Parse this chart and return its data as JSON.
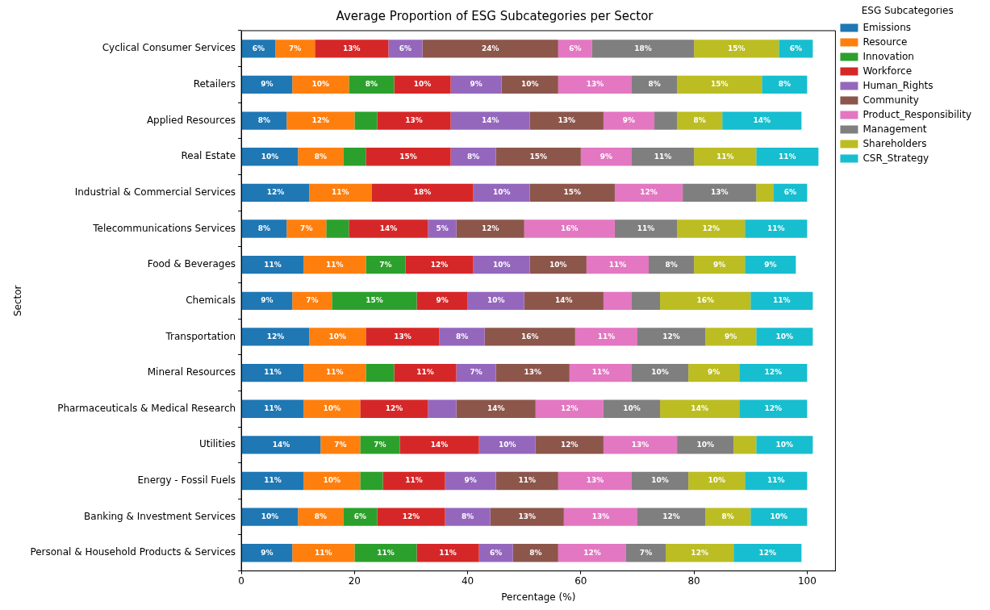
{
  "chart_data": {
    "type": "bar",
    "orientation": "horizontal",
    "stacked": true,
    "title": "Average Proportion of ESG Subcategories per Sector",
    "xlabel": "Percentage (%)",
    "ylabel": "Sector",
    "legend_title": "ESG Subcategories",
    "legend": "top right",
    "grid": false,
    "categories": [
      "Cyclical Consumer Services",
      "Retailers",
      "Applied Resources",
      "Real Estate",
      "Industrial & Commercial Services",
      "Telecommunications Services",
      "Food & Beverages",
      "Chemicals",
      "Transportation",
      "Mineral Resources",
      "Pharmaceuticals & Medical Research",
      "Utilities",
      "Energy - Fossil Fuels",
      "Banking & Investment Services",
      "Personal & Household Products & Services"
    ],
    "xlim": [
      0,
      105
    ],
    "xticks": [
      0,
      20,
      40,
      60,
      80,
      100
    ],
    "series": [
      {
        "name": "Emissions",
        "color": "#1f77b4",
        "values": [
          6,
          9,
          8,
          10,
          12,
          8,
          11,
          9,
          12,
          11,
          11,
          14,
          11,
          10,
          9
        ],
        "value_labels": [
          "6%",
          "9%",
          "8%",
          "10%",
          "12%",
          "8%",
          "11%",
          "9%",
          "12%",
          "11%",
          "11%",
          "14%",
          "11%",
          "10%",
          "9%"
        ]
      },
      {
        "name": "Resource",
        "color": "#ff7f0e",
        "values": [
          7,
          10,
          12,
          8,
          11,
          7,
          11,
          7,
          10,
          11,
          10,
          7,
          10,
          8,
          11
        ],
        "value_labels": [
          "7%",
          "10%",
          "12%",
          "8%",
          "11%",
          "7%",
          "11%",
          "7%",
          "10%",
          "11%",
          "10%",
          "7%",
          "10%",
          "8%",
          "11%"
        ]
      },
      {
        "name": "Innovation",
        "color": "#2ca02c",
        "values": [
          0,
          8,
          4,
          4,
          0,
          4,
          7,
          15,
          0,
          5,
          0,
          7,
          4,
          6,
          11
        ],
        "value_labels": [
          null,
          "8%",
          null,
          null,
          null,
          null,
          "7%",
          "15%",
          null,
          null,
          null,
          "7%",
          null,
          "6%",
          "11%"
        ]
      },
      {
        "name": "Workforce",
        "color": "#d62728",
        "values": [
          13,
          10,
          13,
          15,
          18,
          14,
          12,
          9,
          13,
          11,
          12,
          14,
          11,
          12,
          11
        ],
        "value_labels": [
          "13%",
          "10%",
          "13%",
          "15%",
          "18%",
          "14%",
          "12%",
          "9%",
          "13%",
          "11%",
          "12%",
          "14%",
          "11%",
          "12%",
          "11%"
        ]
      },
      {
        "name": "Human_Rights",
        "color": "#9467bd",
        "values": [
          6,
          9,
          14,
          8,
          10,
          5,
          10,
          10,
          8,
          7,
          5,
          10,
          9,
          8,
          6
        ],
        "value_labels": [
          "6%",
          "9%",
          "14%",
          "8%",
          "10%",
          "5%",
          "10%",
          "10%",
          "8%",
          "7%",
          null,
          "10%",
          "9%",
          "8%",
          "6%"
        ]
      },
      {
        "name": "Community",
        "color": "#8c564b",
        "values": [
          24,
          10,
          13,
          15,
          15,
          12,
          10,
          14,
          16,
          13,
          14,
          12,
          11,
          13,
          8
        ],
        "value_labels": [
          "24%",
          "10%",
          "13%",
          "15%",
          "15%",
          "12%",
          "10%",
          "14%",
          "16%",
          "13%",
          "14%",
          "12%",
          "11%",
          "13%",
          "8%"
        ]
      },
      {
        "name": "Product_Responsibility",
        "color": "#e377c2",
        "values": [
          6,
          13,
          9,
          9,
          12,
          16,
          11,
          5,
          11,
          11,
          12,
          13,
          13,
          13,
          12
        ],
        "value_labels": [
          "6%",
          "13%",
          "9%",
          "9%",
          "12%",
          "16%",
          "11%",
          null,
          "11%",
          "11%",
          "12%",
          "13%",
          "13%",
          "13%",
          "12%"
        ]
      },
      {
        "name": "Management",
        "color": "#7f7f7f",
        "values": [
          18,
          8,
          4,
          11,
          13,
          11,
          8,
          5,
          12,
          10,
          10,
          10,
          10,
          12,
          7
        ],
        "value_labels": [
          "18%",
          "8%",
          null,
          "11%",
          "13%",
          "11%",
          "8%",
          null,
          "12%",
          "10%",
          "10%",
          "10%",
          "10%",
          "12%",
          "7%"
        ]
      },
      {
        "name": "Shareholders",
        "color": "#bcbd22",
        "values": [
          15,
          15,
          8,
          11,
          3,
          12,
          9,
          16,
          9,
          9,
          14,
          4,
          10,
          8,
          12
        ],
        "value_labels": [
          "15%",
          "15%",
          "8%",
          "11%",
          null,
          "12%",
          "9%",
          "16%",
          "9%",
          "9%",
          "14%",
          null,
          "10%",
          "8%",
          "12%"
        ]
      },
      {
        "name": "CSR_Strategy",
        "color": "#17becf",
        "values": [
          6,
          8,
          14,
          11,
          6,
          11,
          9,
          11,
          10,
          12,
          12,
          10,
          11,
          10,
          12
        ],
        "value_labels": [
          "6%",
          "8%",
          "14%",
          "11%",
          "6%",
          "11%",
          "9%",
          "11%",
          "10%",
          "12%",
          "12%",
          "10%",
          "11%",
          "10%",
          "12%"
        ]
      }
    ]
  }
}
